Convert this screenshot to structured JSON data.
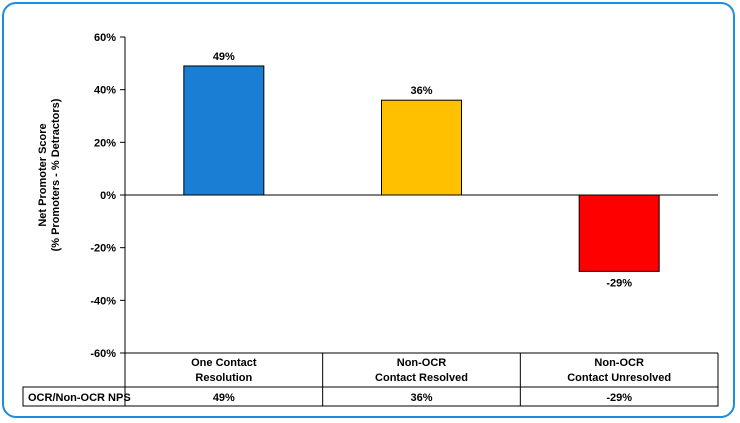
{
  "chart_data": {
    "type": "bar",
    "categories": [
      [
        "One Contact",
        "Resolution"
      ],
      [
        "Non-OCR",
        "Contact Resolved"
      ],
      [
        "Non-OCR",
        "Contact Unresolved"
      ]
    ],
    "values": [
      49,
      36,
      -29
    ],
    "data_labels": [
      "49%",
      "36%",
      "-29%"
    ],
    "colors": [
      "#1a7fd4",
      "#ffc000",
      "#ff0000"
    ],
    "ylabel": [
      "Net Promoter Score",
      "(% Promoters - % Detractors)"
    ],
    "ylim": [
      -60,
      60
    ],
    "yticks": [
      60,
      40,
      20,
      0,
      -20,
      -40,
      -60
    ],
    "ytick_labels": [
      "60%",
      "40%",
      "20%",
      "0%",
      "-20%",
      "-40%",
      "-60%"
    ],
    "grid": false,
    "legend": "none",
    "table": {
      "row_label": "OCR/Non-OCR NPS",
      "values": [
        "49%",
        "36%",
        "-29%"
      ]
    }
  }
}
